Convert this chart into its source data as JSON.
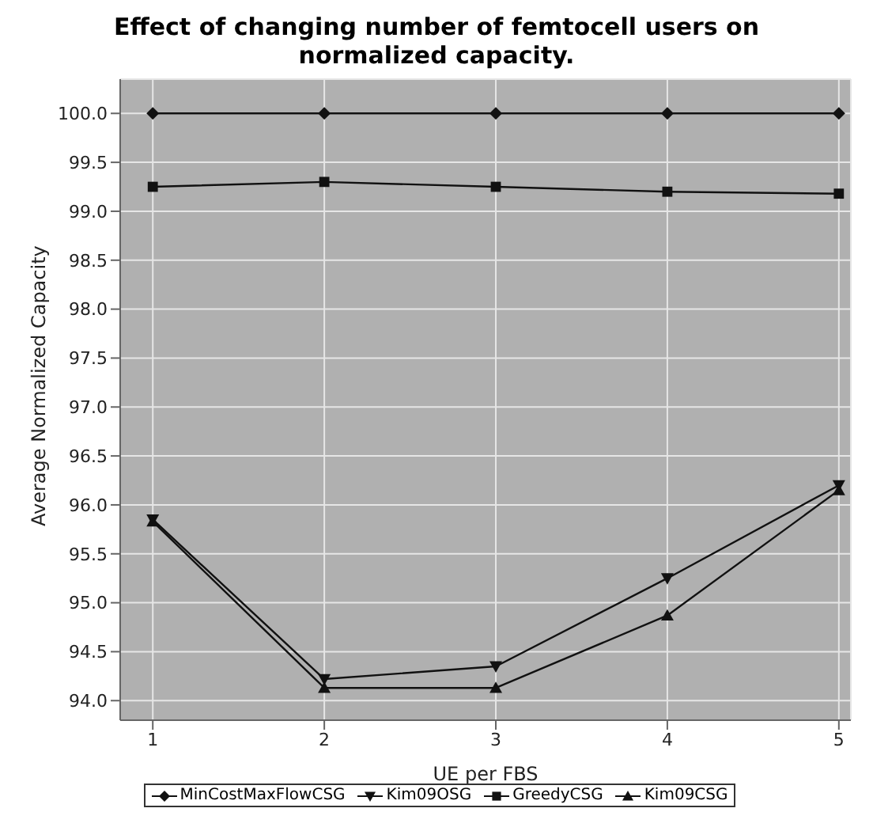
{
  "chart_data": {
    "type": "line",
    "title": "Effect of changing number of femtocell users on normalized capacity.",
    "xlabel": "UE per FBS",
    "ylabel": "Average Normalized Capacity",
    "x": [
      1,
      2,
      3,
      4,
      5
    ],
    "xlim": [
      0.81,
      5.07
    ],
    "xticks": [
      1,
      2,
      3,
      4,
      5
    ],
    "ylim": [
      93.8,
      100.35
    ],
    "yticks": [
      {
        "value": 94,
        "label": "94.0"
      },
      94.5,
      {
        "value": 95,
        "label": "95.0"
      },
      95.5,
      {
        "value": 96,
        "label": "96.0"
      },
      96.5,
      {
        "value": 97,
        "label": "97.0"
      },
      97.5,
      {
        "value": 98,
        "label": "98.0"
      },
      98.5,
      {
        "value": 99,
        "label": "99.0"
      },
      99.5,
      {
        "value": 100,
        "label": "100.0"
      }
    ],
    "grid": true,
    "legend": "bottom",
    "line_style": "solid",
    "series": [
      {
        "name": "MinCostMaxFlowCSG",
        "color": "#111111",
        "marker": "diamond",
        "values": [
          100,
          100,
          100,
          100,
          100
        ]
      },
      {
        "name": "Kim09OSG",
        "color": "#111111",
        "marker": "triangle-down",
        "values": [
          95.85,
          94.22,
          94.35,
          95.25,
          96.2
        ]
      },
      {
        "name": "GreedyCSG",
        "color": "#111111",
        "marker": "square",
        "values": [
          99.25,
          99.3,
          99.25,
          99.2,
          99.18
        ]
      },
      {
        "name": "Kim09CSG",
        "color": "#111111",
        "marker": "triangle",
        "values": [
          95.83,
          94.13,
          94.13,
          94.87,
          96.15
        ]
      }
    ]
  }
}
